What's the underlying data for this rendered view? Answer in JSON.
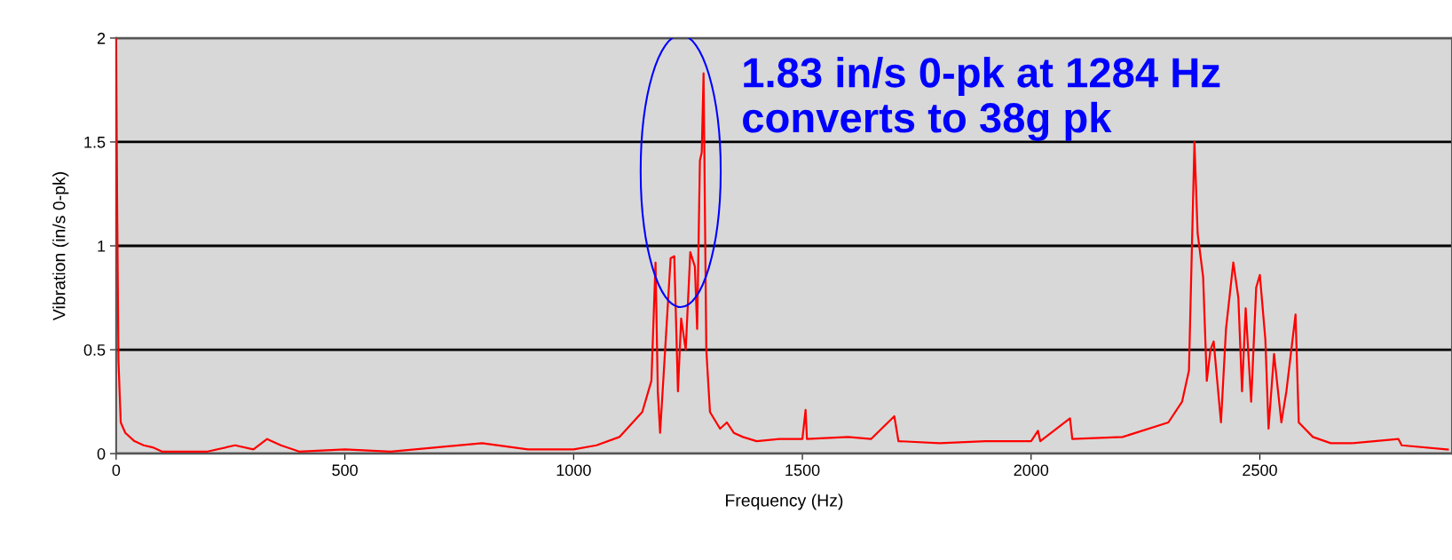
{
  "chart_data": {
    "type": "line",
    "xlabel": "Frequency (Hz)",
    "ylabel": "Vibration (in/s 0-pk)",
    "x": [
      0,
      2,
      5,
      10,
      20,
      40,
      60,
      80,
      100,
      200,
      260,
      300,
      330,
      360,
      400,
      500,
      600,
      700,
      800,
      900,
      950,
      1000,
      1050,
      1100,
      1150,
      1170,
      1179,
      1184,
      1189,
      1200,
      1212,
      1220,
      1228,
      1235,
      1245,
      1255,
      1265,
      1270,
      1276,
      1280,
      1284,
      1290,
      1294,
      1298,
      1320,
      1335,
      1350,
      1370,
      1400,
      1450,
      1500,
      1507,
      1510,
      1600,
      1650,
      1701,
      1710,
      1800,
      1900,
      2000,
      2015,
      2020,
      2085,
      2090,
      2200,
      2300,
      2330,
      2345,
      2357,
      2364,
      2376,
      2384,
      2392,
      2399,
      2415,
      2426,
      2442,
      2453,
      2461,
      2469,
      2481,
      2492,
      2500,
      2512,
      2519,
      2531,
      2547,
      2558,
      2578,
      2585,
      2616,
      2655,
      2700,
      2803,
      2810,
      2911
    ],
    "series": [
      {
        "color": "#ff0000",
        "values": [
          2,
          1.25,
          0.45,
          0.15,
          0.1,
          0.06,
          0.04,
          0.03,
          0.01,
          0.01,
          0.04,
          0.02,
          0.07,
          0.04,
          0.01,
          0.02,
          0.01,
          0.03,
          0.05,
          0.02,
          0.02,
          0.02,
          0.04,
          0.08,
          0.2,
          0.35,
          0.92,
          0.3,
          0.1,
          0.5,
          0.94,
          0.95,
          0.3,
          0.65,
          0.5,
          0.97,
          0.9,
          0.6,
          1.41,
          1.45,
          1.83,
          0.5,
          0.35,
          0.2,
          0.12,
          0.15,
          0.1,
          0.08,
          0.06,
          0.07,
          0.07,
          0.21,
          0.07,
          0.08,
          0.07,
          0.18,
          0.06,
          0.05,
          0.06,
          0.06,
          0.11,
          0.06,
          0.17,
          0.07,
          0.08,
          0.15,
          0.25,
          0.4,
          1.5,
          1.06,
          0.85,
          0.35,
          0.5,
          0.54,
          0.15,
          0.6,
          0.92,
          0.75,
          0.3,
          0.7,
          0.25,
          0.8,
          0.86,
          0.55,
          0.12,
          0.48,
          0.15,
          0.3,
          0.67,
          0.15,
          0.08,
          0.05,
          0.05,
          0.07,
          0.04,
          0.02
        ]
      }
    ],
    "xlim": [
      0,
      2920
    ],
    "xticks": [
      0,
      500,
      1000,
      1500,
      2000,
      2500
    ],
    "ylim": [
      0,
      2
    ],
    "yticks": [
      0,
      0.5,
      1,
      1.5,
      2
    ],
    "grid": "y",
    "marker": "none",
    "line_style": "solid",
    "annotations": [
      "1.83 in/s 0-pk at 1284 Hz\nconverts to 38g pk"
    ]
  }
}
